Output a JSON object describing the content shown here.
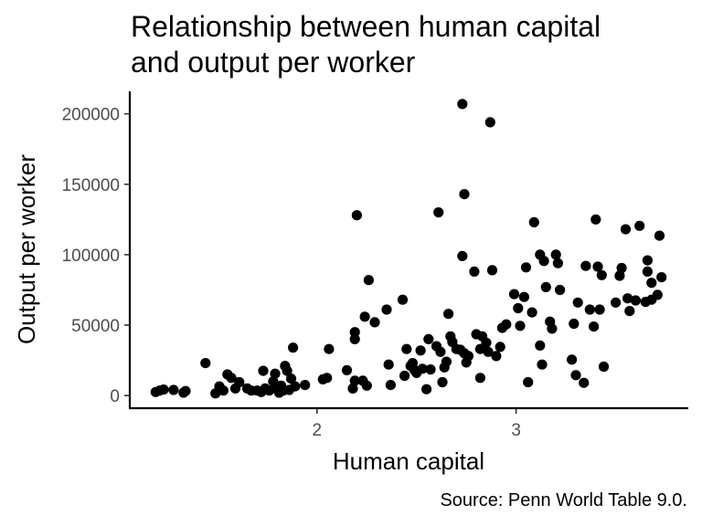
{
  "chart_data": {
    "type": "scatter",
    "title": "Relationship between human capital and output per worker",
    "title_lines": [
      "Relationship between human capital",
      "and output per worker"
    ],
    "xlabel": "Human capital",
    "ylabel": "Output per worker",
    "caption": "Source: Penn World Table 9.0.",
    "xlim": [
      1.06,
      3.86
    ],
    "ylim": [
      -9000,
      216000
    ],
    "x_ticks": [
      2,
      3
    ],
    "x_tick_labels": [
      "2",
      "3"
    ],
    "y_ticks": [
      0,
      50000,
      100000,
      150000,
      200000
    ],
    "y_tick_labels": [
      "0",
      "50000",
      "100000",
      "150000",
      "200000"
    ],
    "grid": false,
    "legend": "none",
    "point_color": "#000000",
    "points": [
      [
        1.19,
        2500
      ],
      [
        1.21,
        3500
      ],
      [
        1.23,
        4200
      ],
      [
        1.28,
        4000
      ],
      [
        1.33,
        2000
      ],
      [
        1.34,
        3200
      ],
      [
        1.44,
        23000
      ],
      [
        1.49,
        1500
      ],
      [
        1.51,
        6500
      ],
      [
        1.53,
        3500
      ],
      [
        1.55,
        15000
      ],
      [
        1.57,
        12500
      ],
      [
        1.59,
        5000
      ],
      [
        1.61,
        9500
      ],
      [
        1.65,
        5000
      ],
      [
        1.67,
        3500
      ],
      [
        1.7,
        3500
      ],
      [
        1.72,
        2500
      ],
      [
        1.73,
        17500
      ],
      [
        1.74,
        5000
      ],
      [
        1.76,
        3500
      ],
      [
        1.78,
        10000
      ],
      [
        1.79,
        15500
      ],
      [
        1.8,
        5000
      ],
      [
        1.81,
        2000
      ],
      [
        1.82,
        7000
      ],
      [
        1.83,
        3500
      ],
      [
        1.84,
        21000
      ],
      [
        1.85,
        17500
      ],
      [
        1.86,
        4000
      ],
      [
        1.87,
        12000
      ],
      [
        1.88,
        34000
      ],
      [
        1.89,
        6500
      ],
      [
        1.94,
        7500
      ],
      [
        2.03,
        11500
      ],
      [
        2.05,
        12500
      ],
      [
        2.06,
        33000
      ],
      [
        2.15,
        18000
      ],
      [
        2.18,
        5000
      ],
      [
        2.19,
        10500
      ],
      [
        2.19,
        45000
      ],
      [
        2.19,
        40000
      ],
      [
        2.2,
        128000
      ],
      [
        2.23,
        10500
      ],
      [
        2.24,
        56000
      ],
      [
        2.25,
        7000
      ],
      [
        2.26,
        82000
      ],
      [
        2.29,
        52000
      ],
      [
        2.35,
        61000
      ],
      [
        2.36,
        22000
      ],
      [
        2.37,
        7500
      ],
      [
        2.43,
        68000
      ],
      [
        2.44,
        14000
      ],
      [
        2.45,
        33000
      ],
      [
        2.47,
        21000
      ],
      [
        2.48,
        23000
      ],
      [
        2.49,
        18000
      ],
      [
        2.5,
        16000
      ],
      [
        2.52,
        32000
      ],
      [
        2.53,
        19000
      ],
      [
        2.55,
        4500
      ],
      [
        2.56,
        40000
      ],
      [
        2.57,
        18500
      ],
      [
        2.6,
        35000
      ],
      [
        2.61,
        130000
      ],
      [
        2.62,
        31000
      ],
      [
        2.63,
        9500
      ],
      [
        2.64,
        20000
      ],
      [
        2.65,
        24000
      ],
      [
        2.66,
        58000
      ],
      [
        2.67,
        42000
      ],
      [
        2.68,
        38000
      ],
      [
        2.7,
        33000
      ],
      [
        2.72,
        32500
      ],
      [
        2.73,
        207000
      ],
      [
        2.74,
        143000
      ],
      [
        2.73,
        99000
      ],
      [
        2.74,
        30000
      ],
      [
        2.75,
        23500
      ],
      [
        2.76,
        28000
      ],
      [
        2.79,
        88000
      ],
      [
        2.8,
        43500
      ],
      [
        2.82,
        33000
      ],
      [
        2.82,
        12500
      ],
      [
        2.83,
        42000
      ],
      [
        2.85,
        37500
      ],
      [
        2.86,
        31000
      ],
      [
        2.87,
        194000
      ],
      [
        2.88,
        89000
      ],
      [
        2.9,
        28000
      ],
      [
        2.92,
        34500
      ],
      [
        2.93,
        48000
      ],
      [
        2.95,
        50500
      ],
      [
        2.99,
        72000
      ],
      [
        3.01,
        62000
      ],
      [
        3.02,
        49500
      ],
      [
        3.04,
        70000
      ],
      [
        3.05,
        91000
      ],
      [
        3.06,
        9500
      ],
      [
        3.08,
        59000
      ],
      [
        3.09,
        123000
      ],
      [
        3.12,
        100000
      ],
      [
        3.12,
        35500
      ],
      [
        3.13,
        22000
      ],
      [
        3.14,
        95500
      ],
      [
        3.15,
        77000
      ],
      [
        3.17,
        52500
      ],
      [
        3.18,
        47500
      ],
      [
        3.2,
        100000
      ],
      [
        3.21,
        94000
      ],
      [
        3.22,
        75000
      ],
      [
        3.28,
        25500
      ],
      [
        3.29,
        51000
      ],
      [
        3.3,
        14500
      ],
      [
        3.31,
        66000
      ],
      [
        3.34,
        9000
      ],
      [
        3.35,
        92000
      ],
      [
        3.37,
        61000
      ],
      [
        3.39,
        49000
      ],
      [
        3.4,
        125000
      ],
      [
        3.41,
        91500
      ],
      [
        3.42,
        61000
      ],
      [
        3.43,
        85500
      ],
      [
        3.44,
        20500
      ],
      [
        3.5,
        66000
      ],
      [
        3.52,
        85000
      ],
      [
        3.53,
        90500
      ],
      [
        3.55,
        118000
      ],
      [
        3.56,
        69000
      ],
      [
        3.57,
        60000
      ],
      [
        3.6,
        67500
      ],
      [
        3.62,
        120500
      ],
      [
        3.65,
        66500
      ],
      [
        3.66,
        96000
      ],
      [
        3.66,
        88000
      ],
      [
        3.68,
        68000
      ],
      [
        3.68,
        80000
      ],
      [
        3.71,
        71500
      ],
      [
        3.72,
        113500
      ],
      [
        3.73,
        84000
      ]
    ]
  }
}
